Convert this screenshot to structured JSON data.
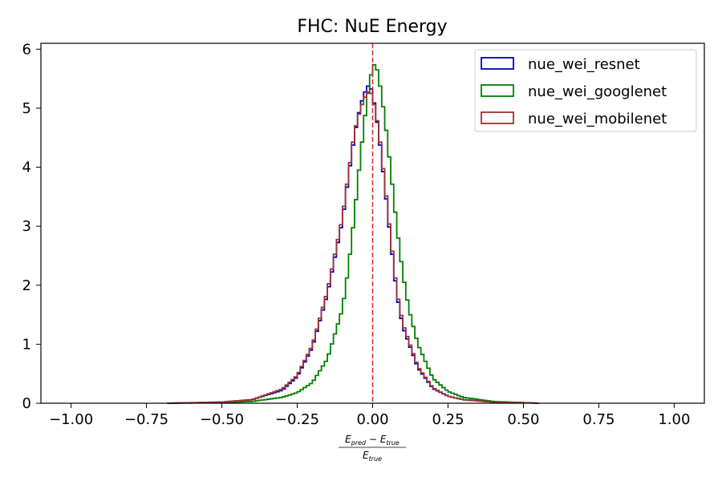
{
  "chart_data": {
    "type": "step",
    "title": "FHC: NuE Energy",
    "xlabel": {
      "numerator": "E",
      "numerator_sub_1": "pred",
      "minus": " − E",
      "numerator_sub_2": "true",
      "denominator": "E",
      "denominator_sub": "true"
    },
    "ylabel": "",
    "xlim": [
      -1.1,
      1.1
    ],
    "ylim": [
      0,
      6.1
    ],
    "xticks": [
      "−1.00",
      "−0.75",
      "−0.50",
      "−0.25",
      "0.00",
      "0.25",
      "0.50",
      "0.75",
      "1.00"
    ],
    "xtick_values": [
      -1.0,
      -0.75,
      -0.5,
      -0.25,
      0.0,
      0.25,
      0.5,
      0.75,
      1.0
    ],
    "yticks": [
      "0",
      "1",
      "2",
      "3",
      "4",
      "5",
      "6"
    ],
    "ytick_values": [
      0,
      1,
      2,
      3,
      4,
      5,
      6
    ],
    "reference_line": {
      "x": 0.0,
      "color": "#d62728",
      "style": "dashed"
    },
    "legend_position": "top-right",
    "histogram": {
      "range": [
        -1.0,
        1.0
      ],
      "bin_width": 0.01
    },
    "series": [
      {
        "name": "nue_wei_resnet",
        "color": "#0000cc",
        "centers": [
          -0.68,
          -0.5,
          -0.4,
          -0.3,
          -0.25,
          -0.2,
          -0.15,
          -0.1,
          -0.08,
          -0.06,
          -0.04,
          -0.02,
          -0.01,
          0.0,
          0.02,
          0.04,
          0.06,
          0.08,
          0.1,
          0.15,
          0.2,
          0.25,
          0.3,
          0.4,
          0.5,
          0.55
        ],
        "counts": [
          0.0,
          0.02,
          0.06,
          0.22,
          0.45,
          0.95,
          1.85,
          3.1,
          3.85,
          4.55,
          5.05,
          5.35,
          5.4,
          5.25,
          4.6,
          3.7,
          2.75,
          1.85,
          1.3,
          0.6,
          0.25,
          0.12,
          0.06,
          0.02,
          0.01,
          0.0
        ]
      },
      {
        "name": "nue_wei_googlenet",
        "color": "#008000",
        "centers": [
          -0.68,
          -0.5,
          -0.4,
          -0.3,
          -0.25,
          -0.2,
          -0.15,
          -0.1,
          -0.08,
          -0.06,
          -0.04,
          -0.02,
          0.0,
          0.01,
          0.02,
          0.04,
          0.06,
          0.08,
          0.1,
          0.12,
          0.15,
          0.2,
          0.25,
          0.3,
          0.4,
          0.5,
          0.55
        ],
        "counts": [
          0.0,
          0.01,
          0.03,
          0.1,
          0.18,
          0.35,
          0.75,
          1.6,
          2.3,
          3.2,
          4.2,
          5.1,
          5.72,
          5.75,
          5.55,
          4.85,
          3.95,
          3.0,
          2.2,
          1.6,
          1.0,
          0.42,
          0.2,
          0.1,
          0.03,
          0.01,
          0.0
        ]
      },
      {
        "name": "nue_wei_mobilenet",
        "color": "#a03030",
        "centers": [
          -0.68,
          -0.5,
          -0.4,
          -0.3,
          -0.25,
          -0.2,
          -0.15,
          -0.1,
          -0.08,
          -0.06,
          -0.04,
          -0.02,
          -0.01,
          0.0,
          0.02,
          0.04,
          0.06,
          0.08,
          0.1,
          0.15,
          0.2,
          0.25,
          0.3,
          0.4,
          0.5,
          0.55
        ],
        "counts": [
          0.0,
          0.02,
          0.06,
          0.24,
          0.47,
          0.98,
          1.9,
          3.15,
          3.9,
          4.6,
          5.0,
          5.25,
          5.3,
          5.2,
          4.65,
          3.75,
          2.8,
          1.9,
          1.35,
          0.62,
          0.26,
          0.12,
          0.06,
          0.02,
          0.01,
          0.0
        ]
      }
    ]
  }
}
